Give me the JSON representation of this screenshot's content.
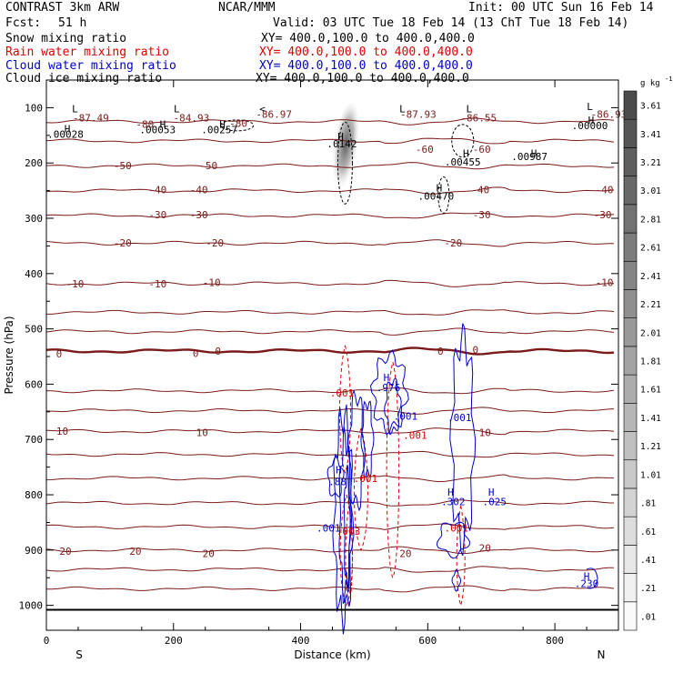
{
  "header": {
    "model": "CONTRAST  3km ARW",
    "org": "NCAR/MMM",
    "init": "Init: 00 UTC Sun 16 Feb 14",
    "fcst_label": "Fcst:",
    "fcst_value": "51 h",
    "valid": "Valid: 03 UTC Tue 18 Feb 14 (13 ChT Tue 18 Feb 14)",
    "fields": [
      {
        "name": "Snow mixing ratio",
        "xy": "XY= 400.0,100.0 to 400.0,400.0",
        "color": "#000000"
      },
      {
        "name": "Rain water mixing ratio",
        "xy": "XY= 400.0,100.0 to 400.0,400.0",
        "color": "#dd0000"
      },
      {
        "name": "Cloud water mixing ratio",
        "xy": "XY= 400.0,100.0 to 400.0,400.0",
        "color": "#0000cc"
      },
      {
        "name": "Cloud ice mixing ratio",
        "xy": "XY= 400.0,100.0 to 400.0,400.0",
        "color": "#000000"
      }
    ]
  },
  "chart_data": {
    "type": "cross-section",
    "xlabel": "Distance (km)",
    "ylabel": "Pressure (hPa)",
    "xlim": [
      0,
      900
    ],
    "ylim": [
      1045,
      50
    ],
    "x_ticks": [
      0,
      200,
      400,
      600,
      800
    ],
    "y_ticks": [
      100,
      200,
      300,
      400,
      500,
      600,
      700,
      800,
      900,
      1000
    ],
    "endpoints": {
      "left": "S",
      "right": "N"
    },
    "colorbar": {
      "unit": "g kg",
      "unit_exp": "-1",
      "levels": [
        ".01",
        ".21",
        ".41",
        ".61",
        ".81",
        "1.01",
        "1.21",
        "1.41",
        "1.61",
        "1.81",
        "2.01",
        "2.21",
        "2.41",
        "2.61",
        "2.81",
        "3.01",
        "3.21",
        "3.41",
        "3.61"
      ]
    },
    "temperature_contours": [
      {
        "label": "-80",
        "p": 125
      },
      {
        "label": "-60",
        "p": 160
      },
      {
        "label": "-50",
        "p": 205
      },
      {
        "label": "-40",
        "p": 250
      },
      {
        "label": "-30",
        "p": 295
      },
      {
        "label": "-20",
        "p": 345
      },
      {
        "label": "-10",
        "p": 418
      },
      {
        "label": "-",
        "p": 470
      },
      {
        "label": "-",
        "p": 505
      },
      {
        "label": "0",
        "p": 540
      },
      {
        "label": "-",
        "p": 612
      },
      {
        "label": "-",
        "p": 648
      },
      {
        "label": "10",
        "p": 685
      },
      {
        "label": "-",
        "p": 727
      },
      {
        "label": "-",
        "p": 770
      },
      {
        "label": "-",
        "p": 815
      },
      {
        "label": "-",
        "p": 858
      },
      {
        "label": "20",
        "p": 900
      },
      {
        "label": "-",
        "p": 935
      },
      {
        "label": "-",
        "p": 970
      }
    ],
    "temperature_labels": [
      {
        "x": 70,
        "p": 118,
        "text": "-87.49"
      },
      {
        "x": 228,
        "p": 118,
        "text": "-84.93"
      },
      {
        "x": 358,
        "p": 112,
        "text": "-86.97"
      },
      {
        "x": 585,
        "p": 112,
        "text": "-87.93"
      },
      {
        "x": 680,
        "p": 118,
        "text": "-86.55"
      },
      {
        "x": 885,
        "p": 112,
        "text": "-86.93"
      },
      {
        "x": 155,
        "p": 130,
        "text": "-80"
      },
      {
        "x": 302,
        "p": 128,
        "text": "-80"
      },
      {
        "x": 595,
        "p": 175,
        "text": "-60"
      },
      {
        "x": 685,
        "p": 175,
        "text": "-60"
      },
      {
        "x": 120,
        "p": 205,
        "text": "-50"
      },
      {
        "x": 255,
        "p": 205,
        "text": "-50"
      },
      {
        "x": 175,
        "p": 248,
        "text": "-40"
      },
      {
        "x": 240,
        "p": 248,
        "text": "-40"
      },
      {
        "x": 683,
        "p": 248,
        "text": "-40"
      },
      {
        "x": 878,
        "p": 248,
        "text": "-40"
      },
      {
        "x": 175,
        "p": 293,
        "text": "-30"
      },
      {
        "x": 240,
        "p": 293,
        "text": "-30"
      },
      {
        "x": 685,
        "p": 293,
        "text": "-30"
      },
      {
        "x": 875,
        "p": 293,
        "text": "-30"
      },
      {
        "x": 120,
        "p": 344,
        "text": "-20"
      },
      {
        "x": 265,
        "p": 344,
        "text": "-20"
      },
      {
        "x": 640,
        "p": 344,
        "text": "-20"
      },
      {
        "x": 45,
        "p": 418,
        "text": "-10"
      },
      {
        "x": 175,
        "p": 418,
        "text": "-10"
      },
      {
        "x": 260,
        "p": 416,
        "text": "-10"
      },
      {
        "x": 878,
        "p": 416,
        "text": "-10"
      },
      {
        "x": 20,
        "p": 545,
        "text": "0"
      },
      {
        "x": 235,
        "p": 544,
        "text": "0"
      },
      {
        "x": 270,
        "p": 540,
        "text": "0"
      },
      {
        "x": 620,
        "p": 540,
        "text": "0"
      },
      {
        "x": 675,
        "p": 538,
        "text": "0"
      },
      {
        "x": 25,
        "p": 685,
        "text": "10"
      },
      {
        "x": 245,
        "p": 687,
        "text": "10"
      },
      {
        "x": 690,
        "p": 687,
        "text": "10"
      },
      {
        "x": 30,
        "p": 902,
        "text": "20"
      },
      {
        "x": 140,
        "p": 902,
        "text": "20"
      },
      {
        "x": 255,
        "p": 906,
        "text": "20"
      },
      {
        "x": 565,
        "p": 906,
        "text": "20"
      },
      {
        "x": 690,
        "p": 896,
        "text": "20"
      }
    ],
    "high_low_marks": [
      {
        "x": 45,
        "p": 102,
        "text": "L"
      },
      {
        "x": 205,
        "p": 102,
        "text": "L"
      },
      {
        "x": 340,
        "p": 102,
        "text": "<"
      },
      {
        "x": 560,
        "p": 102,
        "text": "L"
      },
      {
        "x": 665,
        "p": 102,
        "text": "L"
      },
      {
        "x": 855,
        "p": 98,
        "text": "L"
      },
      {
        "x": 33,
        "p": 138,
        "text": "H"
      },
      {
        "x": 183,
        "p": 130,
        "text": "H"
      },
      {
        "x": 277,
        "p": 130,
        "text": "H"
      },
      {
        "x": 463,
        "p": 152,
        "text": "H"
      },
      {
        "x": 660,
        "p": 182,
        "text": "H"
      },
      {
        "x": 767,
        "p": 182,
        "text": "H"
      },
      {
        "x": 857,
        "p": 122,
        "text": "H"
      },
      {
        "x": 618,
        "p": 245,
        "text": "H"
      },
      {
        "x": 535,
        "p": 588,
        "text": "H"
      },
      {
        "x": 460,
        "p": 755,
        "text": "H"
      },
      {
        "x": 636,
        "p": 795,
        "text": "H"
      },
      {
        "x": 700,
        "p": 795,
        "text": "H"
      },
      {
        "x": 850,
        "p": 947,
        "text": "H"
      }
    ],
    "ice_labels": [
      {
        "x": 30,
        "p": 148,
        "text": ".00028"
      },
      {
        "x": 175,
        "p": 140,
        "text": ".00053"
      },
      {
        "x": 272,
        "p": 140,
        "text": ".00257"
      },
      {
        "x": 465,
        "p": 165,
        "text": ".0142"
      },
      {
        "x": 655,
        "p": 198,
        "text": ".00455"
      },
      {
        "x": 760,
        "p": 188,
        "text": ".00987"
      },
      {
        "x": 855,
        "p": 132,
        "text": ".00000"
      },
      {
        "x": 613,
        "p": 260,
        "text": ".00470"
      }
    ],
    "rain_labels": [
      {
        "x": 465,
        "p": 616,
        "text": ".001"
      },
      {
        "x": 580,
        "p": 692,
        "text": ".001"
      },
      {
        "x": 502,
        "p": 770,
        "text": ".001"
      },
      {
        "x": 645,
        "p": 860,
        "text": ".001"
      },
      {
        "x": 475,
        "p": 866,
        "text": ".003"
      }
    ],
    "cloud_water_labels": [
      {
        "x": 538,
        "p": 606,
        "text": ".976"
      },
      {
        "x": 565,
        "p": 658,
        "text": ".001"
      },
      {
        "x": 650,
        "p": 660,
        "text": ".001"
      },
      {
        "x": 458,
        "p": 776,
        "text": ".88"
      },
      {
        "x": 640,
        "p": 812,
        "text": ".302"
      },
      {
        "x": 705,
        "p": 812,
        "text": ".025"
      },
      {
        "x": 444,
        "p": 860,
        "text": ".001"
      },
      {
        "x": 850,
        "p": 960,
        "text": ".230"
      }
    ],
    "snow_max": {
      "x": 470,
      "p": 175,
      "value": 2.2
    }
  }
}
